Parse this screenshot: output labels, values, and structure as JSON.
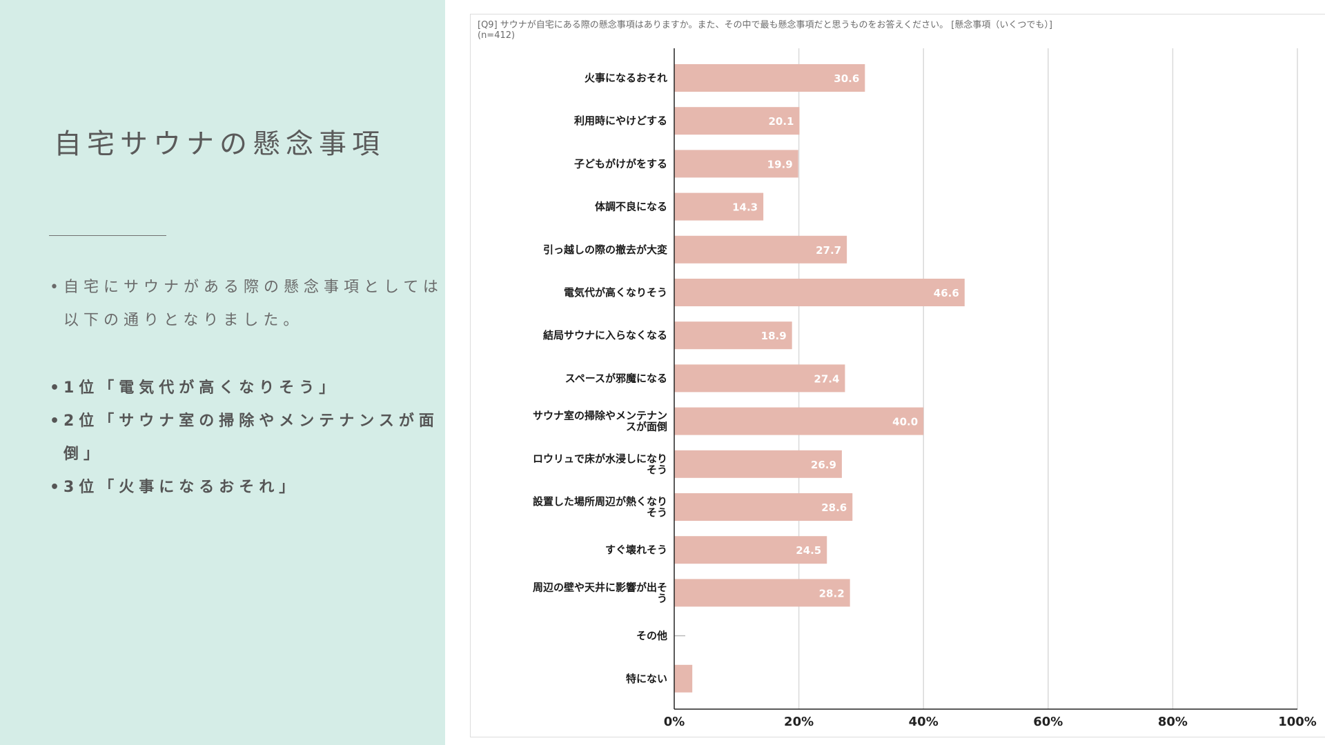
{
  "slide": {
    "title": "自宅サウナの懸念事項",
    "intro_lines": [
      "自宅にサウナがある際の懸念事項としては",
      "以下の通りとなりました。"
    ],
    "rankings": [
      {
        "text": "1位「電気代が高くなりそう」"
      },
      {
        "text": "2位「サウナ室の掃除やメンテナンスが面",
        "continuation": "倒」"
      },
      {
        "text": "3位「火事になるおそれ」"
      }
    ]
  },
  "chart_header": {
    "question": "[Q9] サウナが自宅にある際の懸念事項はありますか。また、その中で最も懸念事項だと思うものをお答えください。 [懸念事項（いくつでも）]",
    "sample": "(n=412)"
  },
  "colors": {
    "panel_bg": "#d5ede7",
    "bar": "#e6b8ae",
    "bar_label": "#ffffff",
    "grid": "#d9d9d9",
    "axis": "#222222"
  },
  "chart_data": {
    "type": "bar",
    "orientation": "horizontal",
    "categories": [
      [
        "火事になるおそれ"
      ],
      [
        "利用時にやけどする"
      ],
      [
        "子どもがけがをする"
      ],
      [
        "体調不良になる"
      ],
      [
        "引っ越しの際の撤去が大変"
      ],
      [
        "電気代が高くなりそう"
      ],
      [
        "結局サウナに入らなくなる"
      ],
      [
        "スペースが邪魔になる"
      ],
      [
        "サウナ室の掃除やメンテナン",
        "スが面倒"
      ],
      [
        "ロウリュで床が水浸しになり",
        "そう"
      ],
      [
        "設置した場所周辺が熱くなり",
        "そう"
      ],
      [
        "すぐ壊れそう"
      ],
      [
        "周辺の壁や天井に影響が出そ",
        "う"
      ],
      [
        "その他"
      ],
      [
        "特にない"
      ]
    ],
    "values": [
      30.6,
      20.1,
      19.9,
      14.3,
      27.7,
      46.6,
      18.9,
      27.4,
      40.0,
      26.9,
      28.6,
      24.5,
      28.2,
      0.0,
      2.9
    ],
    "data_labels": [
      "30.6",
      "20.1",
      "19.9",
      "14.3",
      "27.7",
      "46.6",
      "18.9",
      "27.4",
      "40.0",
      "26.9",
      "28.6",
      "24.5",
      "28.2",
      "",
      ""
    ],
    "xlim": [
      0,
      100
    ],
    "x_ticks": [
      0,
      20,
      40,
      60,
      80,
      100
    ],
    "x_tick_labels": [
      "0%",
      "20%",
      "40%",
      "60%",
      "80%",
      "100%"
    ],
    "grid": true,
    "legend": "none"
  }
}
